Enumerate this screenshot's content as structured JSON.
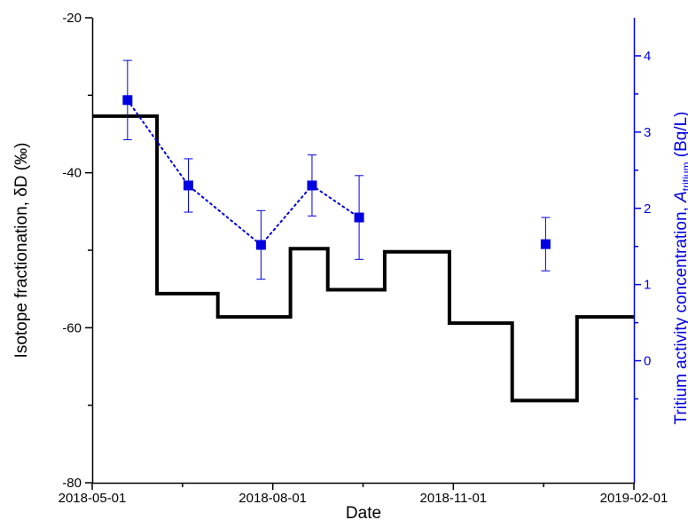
{
  "chart_data": {
    "type": "line",
    "xlabel": "Date",
    "ylabel": "Isotope fractionation, δD (‰)",
    "y2label": {
      "prefix": "Tritium activity concentration, ",
      "symbol": "A",
      "subscript": "tritium",
      "suffix": " (Bq/L)"
    },
    "xlim": [
      "2018-05-01",
      "2019-02-01"
    ],
    "ylim": [
      -80,
      -20
    ],
    "y2lim": [
      -1.6,
      4.5
    ],
    "xticks": [
      "2018-05-01",
      "2018-08-01",
      "2018-11-01",
      "2019-02-01"
    ],
    "yticks": [
      -80,
      -60,
      -40,
      -20
    ],
    "y2ticks": [
      0,
      1,
      2,
      3,
      4
    ],
    "grid": false,
    "colors": {
      "step": "#000000",
      "tritium": "#0000e0"
    },
    "series": [
      {
        "axis": "left",
        "style": "step",
        "steps": [
          {
            "start": "2018-05-01",
            "end": "2018-06-03",
            "value": -32.7
          },
          {
            "start": "2018-06-03",
            "end": "2018-07-04",
            "value": -55.6
          },
          {
            "start": "2018-07-04",
            "end": "2018-08-10",
            "value": -58.6
          },
          {
            "start": "2018-08-10",
            "end": "2018-08-29",
            "value": -49.8
          },
          {
            "start": "2018-08-29",
            "end": "2018-09-27",
            "value": -55.1
          },
          {
            "start": "2018-09-27",
            "end": "2018-10-30",
            "value": -50.2
          },
          {
            "start": "2018-10-30",
            "end": "2018-12-01",
            "value": -59.4
          },
          {
            "start": "2018-12-01",
            "end": "2019-01-03",
            "value": -69.4
          },
          {
            "start": "2019-01-03",
            "end": "2019-02-01",
            "value": -58.6
          }
        ]
      },
      {
        "axis": "right",
        "style": "scatter-errorbar",
        "points": [
          {
            "x": "2018-05-19",
            "y": 3.42,
            "err": 0.52,
            "connected": true
          },
          {
            "x": "2018-06-19",
            "y": 2.3,
            "err": 0.35,
            "connected": true
          },
          {
            "x": "2018-07-26",
            "y": 1.52,
            "err": 0.45,
            "connected": true
          },
          {
            "x": "2018-08-21",
            "y": 2.3,
            "err": 0.4,
            "connected": true
          },
          {
            "x": "2018-09-14",
            "y": 1.88,
            "err": 0.55,
            "connected": true
          },
          {
            "x": "2018-12-18",
            "y": 1.53,
            "err": 0.35,
            "connected": false
          }
        ]
      }
    ]
  }
}
